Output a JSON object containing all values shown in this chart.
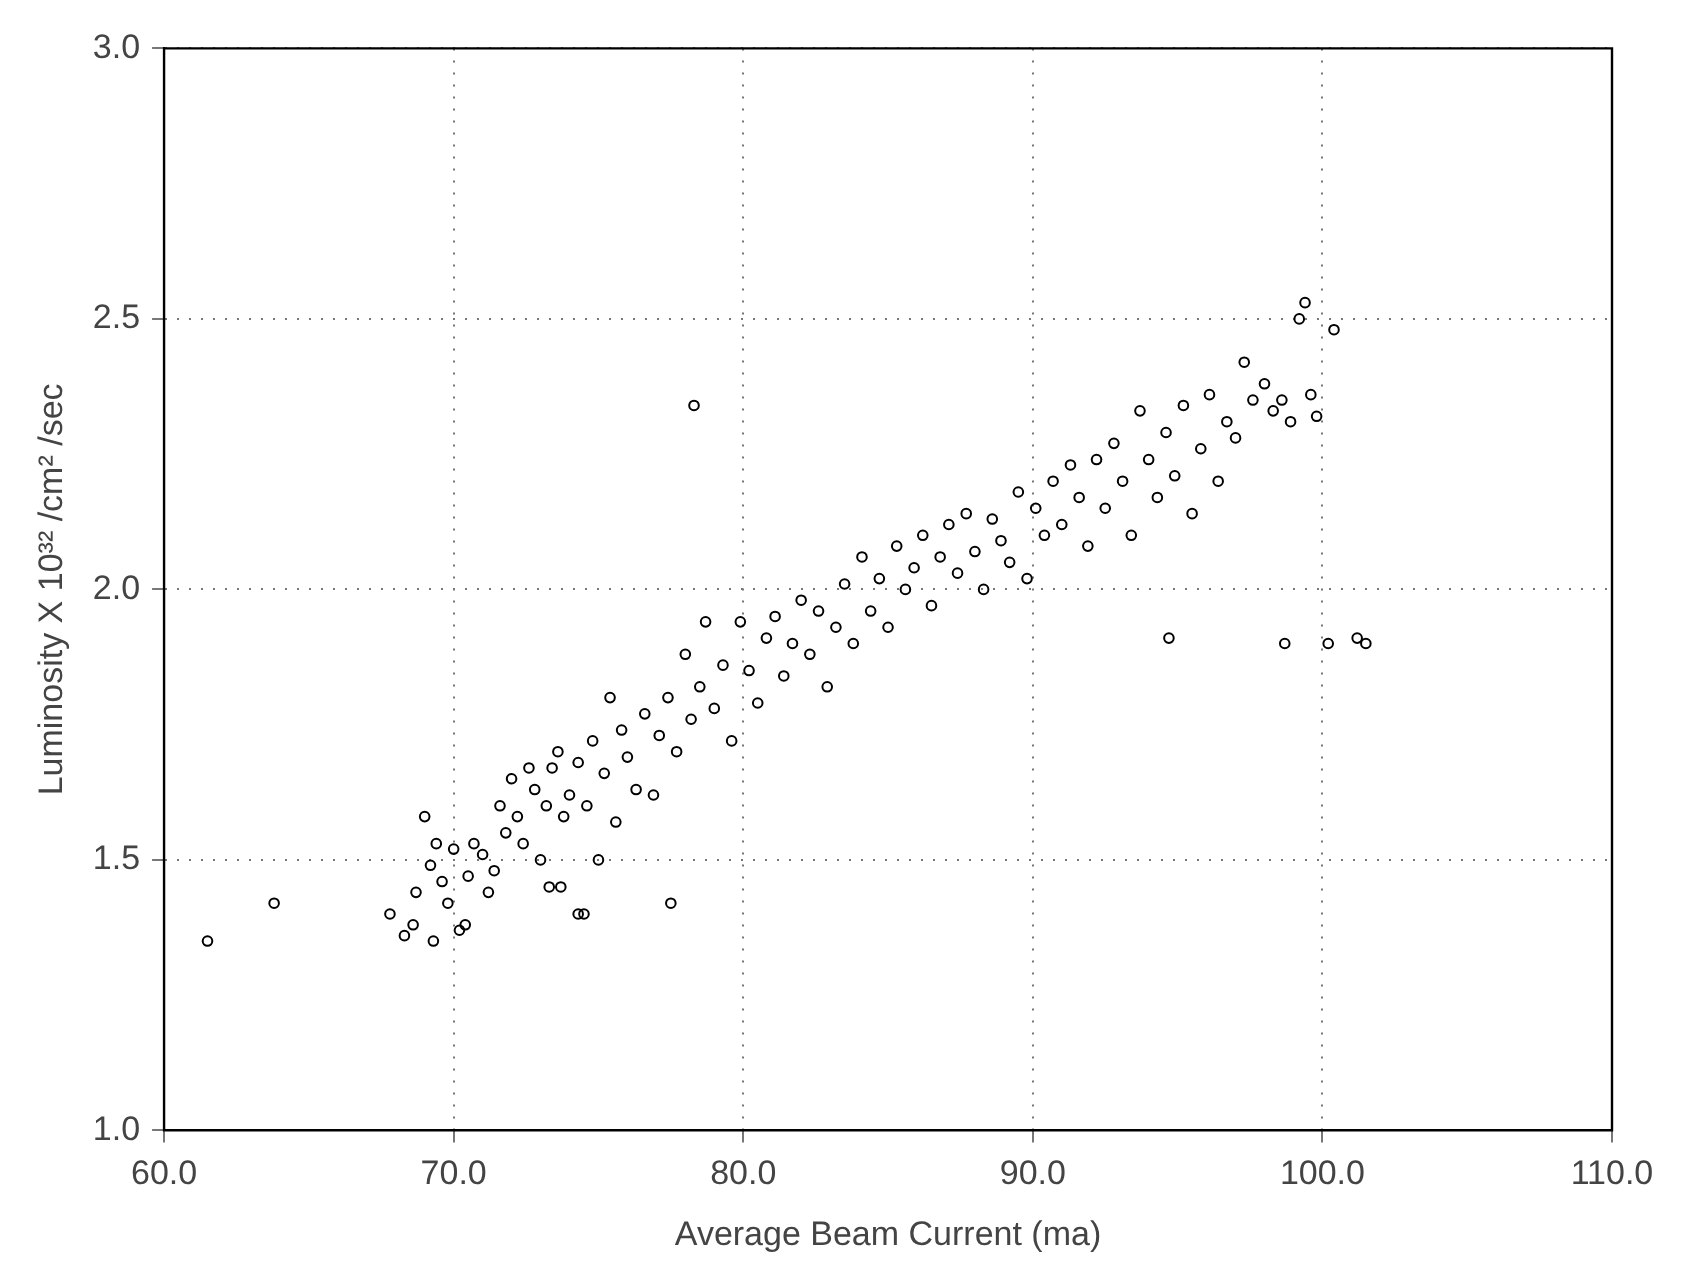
{
  "chart_data": {
    "type": "scatter",
    "xlabel": "Average Beam Current (ma)",
    "ylabel": "Luminosity X 10³² /cm² /sec",
    "xlim": [
      60,
      110
    ],
    "ylim": [
      1.0,
      3.0
    ],
    "xticks": [
      {
        "value": 60,
        "label": "60.0"
      },
      {
        "value": 70,
        "label": "70.0"
      },
      {
        "value": 80,
        "label": "80.0"
      },
      {
        "value": 90,
        "label": "90.0"
      },
      {
        "value": 100,
        "label": "100.0"
      },
      {
        "value": 110,
        "label": "110.0"
      }
    ],
    "yticks": [
      {
        "value": 1.0,
        "label": "1.0"
      },
      {
        "value": 1.5,
        "label": "1.5"
      },
      {
        "value": 2.0,
        "label": "2.0"
      },
      {
        "value": 2.5,
        "label": "2.5"
      },
      {
        "value": 3.0,
        "label": "3.0"
      }
    ],
    "grid": true,
    "marker": "circle",
    "series": [
      {
        "color": "#000000",
        "x": [
          61.5,
          63.8,
          67.8,
          68.3,
          68.6,
          68.7,
          69.0,
          69.2,
          69.3,
          69.4,
          69.6,
          69.8,
          70.0,
          70.2,
          70.4,
          70.5,
          70.7,
          71.0,
          71.2,
          71.4,
          71.6,
          71.8,
          72.0,
          72.2,
          72.4,
          72.6,
          72.8,
          73.0,
          73.2,
          73.3,
          73.4,
          73.6,
          73.7,
          73.8,
          74.0,
          74.3,
          74.3,
          74.5,
          74.6,
          74.8,
          75.0,
          75.2,
          75.4,
          75.6,
          75.8,
          76.0,
          76.3,
          76.6,
          76.9,
          77.1,
          77.4,
          77.5,
          77.7,
          78.0,
          78.2,
          78.3,
          78.5,
          78.7,
          79.0,
          79.3,
          79.6,
          79.9,
          80.2,
          80.5,
          80.8,
          81.1,
          81.4,
          81.7,
          82.0,
          82.3,
          82.6,
          82.9,
          83.2,
          83.5,
          83.8,
          84.1,
          84.4,
          84.7,
          85.0,
          85.3,
          85.6,
          85.9,
          86.2,
          86.5,
          86.8,
          87.1,
          87.4,
          87.7,
          88.0,
          88.3,
          88.6,
          88.9,
          89.2,
          89.5,
          89.8,
          90.1,
          90.4,
          90.7,
          91.0,
          91.3,
          91.6,
          91.9,
          92.2,
          92.5,
          92.8,
          93.1,
          93.4,
          93.7,
          94.0,
          94.3,
          94.6,
          94.7,
          94.9,
          95.2,
          95.5,
          95.8,
          96.1,
          96.4,
          96.7,
          97.0,
          97.3,
          97.6,
          98.0,
          98.3,
          98.6,
          98.7,
          98.9,
          99.2,
          99.4,
          99.6,
          99.8,
          100.2,
          100.4,
          101.2,
          101.5
        ],
        "values": [
          1.35,
          1.42,
          1.4,
          1.36,
          1.38,
          1.44,
          1.58,
          1.49,
          1.35,
          1.53,
          1.46,
          1.42,
          1.52,
          1.37,
          1.38,
          1.47,
          1.53,
          1.51,
          1.44,
          1.48,
          1.6,
          1.55,
          1.65,
          1.58,
          1.53,
          1.67,
          1.63,
          1.5,
          1.6,
          1.45,
          1.67,
          1.7,
          1.45,
          1.58,
          1.62,
          1.68,
          1.4,
          1.4,
          1.6,
          1.72,
          1.5,
          1.66,
          1.8,
          1.57,
          1.74,
          1.69,
          1.63,
          1.77,
          1.62,
          1.73,
          1.8,
          1.42,
          1.7,
          1.88,
          1.76,
          2.34,
          1.82,
          1.94,
          1.78,
          1.86,
          1.72,
          1.94,
          1.85,
          1.79,
          1.91,
          1.95,
          1.84,
          1.9,
          1.98,
          1.88,
          1.96,
          1.82,
          1.93,
          2.01,
          1.9,
          2.06,
          1.96,
          2.02,
          1.93,
          2.08,
          2.0,
          2.04,
          2.1,
          1.97,
          2.06,
          2.12,
          2.03,
          2.14,
          2.07,
          2.0,
          2.13,
          2.09,
          2.05,
          2.18,
          2.02,
          2.15,
          2.1,
          2.2,
          2.12,
          2.23,
          2.17,
          2.08,
          2.24,
          2.15,
          2.27,
          2.2,
          2.1,
          2.33,
          2.24,
          2.17,
          2.29,
          1.91,
          2.21,
          2.34,
          2.14,
          2.26,
          2.36,
          2.2,
          2.31,
          2.28,
          2.42,
          2.35,
          2.38,
          2.33,
          2.35,
          1.9,
          2.31,
          2.5,
          2.53,
          2.36,
          2.32,
          1.9,
          2.48,
          1.91,
          1.9
        ]
      }
    ]
  }
}
